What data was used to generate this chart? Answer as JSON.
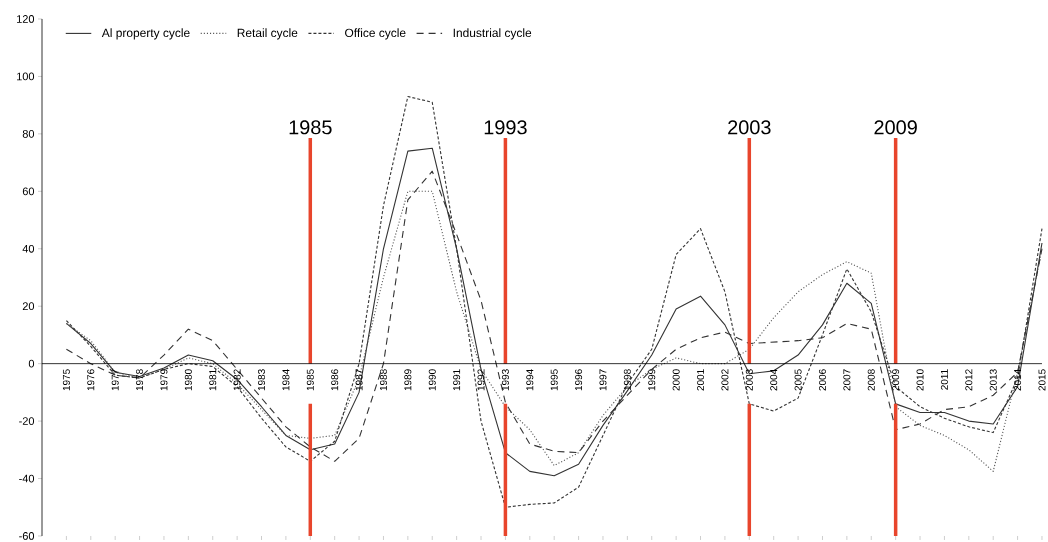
{
  "chart_data": {
    "type": "line",
    "x": [
      1975,
      1976,
      1977,
      1978,
      1979,
      1980,
      1981,
      1982,
      1983,
      1984,
      1985,
      1986,
      1987,
      1988,
      1989,
      1990,
      1991,
      1992,
      1993,
      1994,
      1995,
      1996,
      1997,
      1998,
      1999,
      2000,
      2001,
      2002,
      2003,
      2004,
      2005,
      2006,
      2007,
      2008,
      2009,
      2010,
      2011,
      2012,
      2013,
      2014,
      2015
    ],
    "series": [
      {
        "name": "Al property cycle",
        "color": "#333333",
        "line_style": "solid",
        "values": [
          14,
          7,
          -3,
          -4.5,
          -1.5,
          3,
          1,
          -5.5,
          -15,
          -25,
          -30,
          -28,
          -10,
          40,
          74,
          75,
          40,
          -2,
          -31,
          -37.5,
          -39,
          -35,
          -21.5,
          -9.5,
          3,
          19,
          23.5,
          13.5,
          -3.5,
          -2.5,
          3,
          13.5,
          28,
          21,
          -14,
          -17,
          -17,
          -20,
          -21,
          -8,
          42
        ]
      },
      {
        "name": "Retail cycle",
        "color": "#555555",
        "line_style": "dotted",
        "values": [
          14,
          8,
          -3,
          -5,
          -2,
          2,
          0,
          -7,
          -16,
          -25,
          -26,
          -25,
          -5,
          30,
          60,
          60,
          25,
          -2,
          -15,
          -23,
          -35.5,
          -31,
          -18,
          -8,
          -2,
          2,
          0,
          0,
          5,
          16,
          25,
          31,
          35.5,
          31.5,
          -15,
          -21.5,
          -25,
          -30,
          -37.5,
          -3,
          40
        ]
      },
      {
        "name": "Office cycle",
        "color": "#333333",
        "line_style": "dashed",
        "values": [
          15,
          6,
          -4,
          -5,
          -2,
          0,
          -1,
          -8,
          -19,
          -29,
          -34,
          -27,
          0,
          55,
          93,
          91,
          40,
          -20,
          -50,
          -49,
          -48.5,
          -43,
          -25,
          -7,
          5,
          38,
          47,
          25,
          -14,
          -16.5,
          -12,
          10,
          33,
          18,
          -8,
          -15,
          -19,
          -22,
          -24,
          -5,
          47
        ]
      },
      {
        "name": "Industrial cycle",
        "color": "#333333",
        "line_style": "dashed",
        "values": [
          5,
          0,
          -4,
          -5,
          3,
          12,
          8,
          -2,
          -12,
          -22,
          -29,
          -34,
          -26,
          0,
          57,
          67,
          45,
          22,
          -13.5,
          -28,
          -30.5,
          -31,
          -20,
          -11,
          -2,
          5,
          9,
          11,
          7,
          7.5,
          8,
          9,
          14,
          12,
          -23,
          -21,
          -16,
          -15,
          -11,
          -3,
          40
        ]
      }
    ],
    "xlim": [
      1974,
      2015
    ],
    "xticks": [
      1975,
      1976,
      1977,
      1978,
      1979,
      1980,
      1981,
      1982,
      1983,
      1984,
      1985,
      1986,
      1987,
      1988,
      1989,
      1990,
      1991,
      1992,
      1993,
      1994,
      1995,
      1996,
      1997,
      1998,
      1999,
      2000,
      2001,
      2002,
      2003,
      2004,
      2005,
      2006,
      2007,
      2008,
      2009,
      2010,
      2011,
      2012,
      2013,
      2014,
      2015
    ],
    "ylim": [
      -60,
      120
    ],
    "yticks": [
      -60,
      -40,
      -20,
      0,
      20,
      40,
      60,
      80,
      100,
      120
    ],
    "ref_lines": [
      {
        "axis": "x",
        "value": 1985,
        "label": "1985",
        "color": "#e8452c"
      },
      {
        "axis": "x",
        "value": 1993,
        "label": "1993",
        "color": "#e8452c"
      },
      {
        "axis": "x",
        "value": 2003,
        "label": "2003",
        "color": "#e8452c"
      },
      {
        "axis": "x",
        "value": 2009,
        "label": "2009",
        "color": "#e8452c"
      }
    ],
    "legend": "top left",
    "grid": false,
    "marker": "none"
  }
}
